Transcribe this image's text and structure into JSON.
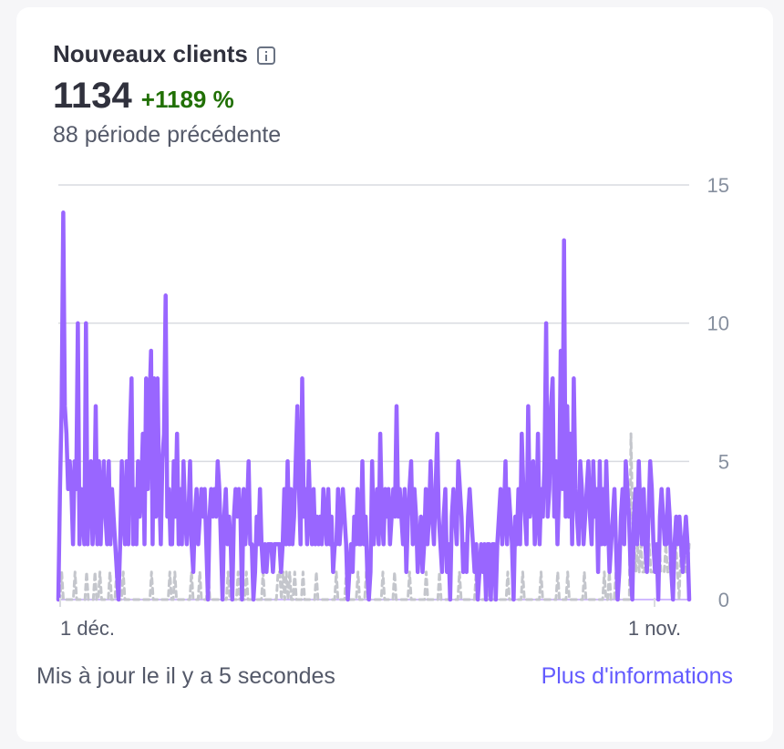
{
  "widget": {
    "title": "Nouveaux clients",
    "info_icon": "info-icon",
    "value": "1134",
    "delta": "+1189 %",
    "previous": "88 période précédente",
    "updated": "Mis à jour le il y a 5 secondes",
    "more_link": "Plus d'informations"
  },
  "colors": {
    "current": "#9966ff",
    "previous": "#c4c6cc",
    "grid": "#d9dbe0",
    "delta": "#217005",
    "link": "#635bff"
  },
  "chart_data": {
    "type": "line",
    "ylim": [
      0,
      15
    ],
    "y_ticks": [
      0,
      5,
      10,
      15
    ],
    "x_tick_labels": [
      "1 déc.",
      "1 nov."
    ],
    "grid": true,
    "series": [
      {
        "style": "solid",
        "values": [
          0,
          4,
          7,
          14,
          7,
          6,
          4,
          5,
          4,
          2,
          5,
          4,
          10,
          2,
          4,
          3,
          2,
          10,
          2,
          4,
          5,
          2,
          3,
          7,
          2,
          5,
          2,
          4,
          5,
          3,
          2,
          5,
          2,
          4,
          3,
          2,
          1,
          0,
          2,
          5,
          3,
          2,
          5,
          2,
          6,
          8,
          2,
          4,
          2,
          5,
          3,
          4,
          6,
          2,
          8,
          4,
          7,
          9,
          2,
          8,
          3,
          8,
          4,
          2,
          5,
          6,
          11,
          3,
          4,
          2,
          2,
          5,
          3,
          6,
          2,
          4,
          2,
          5,
          3,
          2,
          3,
          5,
          2,
          1,
          3,
          4,
          2,
          3,
          4,
          3,
          4,
          2,
          0,
          3,
          4,
          3,
          4,
          3,
          5,
          4,
          2,
          0,
          3,
          4,
          2,
          3,
          2,
          0,
          3,
          4,
          3,
          4,
          3,
          0,
          4,
          2,
          3,
          5,
          2,
          2,
          0,
          1,
          3,
          2,
          4,
          2,
          1,
          2,
          1,
          2,
          2,
          2,
          1,
          2,
          2,
          2,
          2,
          1,
          2,
          4,
          2,
          5,
          2,
          4,
          2,
          3,
          5,
          7,
          4,
          2,
          8,
          3,
          4,
          2,
          5,
          3,
          2,
          4,
          2,
          3,
          2,
          3,
          2,
          4,
          3,
          2,
          4,
          2,
          3,
          1,
          2,
          2,
          4,
          2,
          3,
          4,
          3,
          2,
          0,
          1,
          2,
          1,
          3,
          2,
          4,
          2,
          2,
          5,
          2,
          3,
          1,
          0,
          1,
          5,
          2,
          3,
          4,
          2,
          6,
          3,
          2,
          4,
          3,
          4,
          2,
          3,
          4,
          3,
          7,
          3,
          4,
          3,
          2,
          4,
          1,
          3,
          4,
          5,
          2,
          4,
          3,
          1,
          2,
          3,
          1,
          2,
          4,
          2,
          3,
          5,
          3,
          2,
          4,
          6,
          3,
          2,
          1,
          3,
          4,
          1,
          2,
          0,
          3,
          4,
          3,
          2,
          5,
          4,
          3,
          1,
          2,
          1,
          3,
          4,
          3,
          2,
          1,
          2,
          0,
          1,
          2,
          1,
          2,
          0,
          2,
          2,
          0,
          2,
          2,
          0,
          2,
          3,
          4,
          2,
          3,
          5,
          2,
          4,
          3,
          2,
          0,
          3,
          2,
          4,
          2,
          6,
          4,
          3,
          2,
          7,
          3,
          4,
          5,
          2,
          3,
          6,
          2,
          4,
          3,
          5,
          10,
          3,
          4,
          7,
          8,
          3,
          5,
          2,
          4,
          9,
          4,
          13,
          3,
          7,
          3,
          6,
          2,
          8,
          4,
          3,
          2,
          5,
          4,
          2,
          3,
          4,
          5,
          3,
          2,
          5,
          3,
          4,
          1,
          5,
          2,
          4,
          2,
          5,
          3,
          1,
          2,
          3,
          4,
          2,
          0,
          1,
          3,
          4,
          2,
          5,
          4,
          3,
          1,
          0,
          3,
          4,
          2,
          5,
          3,
          2,
          4,
          2,
          1,
          3,
          5,
          4,
          2,
          1,
          2,
          0,
          3,
          4,
          3,
          2,
          2,
          4,
          3,
          1,
          0,
          2,
          3,
          2,
          3,
          2,
          1,
          2,
          3,
          2,
          0
        ]
      },
      {
        "style": "dashed",
        "values": [
          0,
          0,
          1,
          0,
          0,
          0,
          0,
          0,
          0,
          0,
          1,
          0,
          0,
          0,
          0,
          0,
          0,
          1,
          0,
          0,
          0,
          0,
          1,
          0,
          0,
          1,
          0,
          0,
          0,
          0,
          0,
          1,
          0,
          0,
          0,
          1,
          0,
          0,
          0,
          1,
          0,
          0,
          0,
          0,
          0,
          0,
          0,
          0,
          0,
          0,
          0,
          0,
          0,
          0,
          0,
          0,
          1,
          0,
          0,
          0,
          0,
          0,
          0,
          0,
          0,
          0,
          0,
          1,
          0,
          0,
          1,
          0,
          0,
          0,
          0,
          0,
          0,
          0,
          0,
          0,
          1,
          0,
          0,
          0,
          0,
          1,
          0,
          0,
          0,
          0,
          1,
          0,
          0,
          0,
          0,
          0,
          0,
          0,
          0,
          0,
          0,
          0,
          1,
          0,
          0,
          0,
          0,
          0,
          1,
          0,
          0,
          0,
          0,
          1,
          0,
          0,
          0,
          0,
          0,
          0,
          0,
          0,
          0,
          1,
          0,
          0,
          0,
          0,
          0,
          0,
          0,
          0,
          1,
          1,
          0,
          1,
          0,
          1,
          0,
          1,
          0,
          0,
          1,
          0,
          0,
          0,
          0,
          1,
          0,
          0,
          0,
          0,
          0,
          0,
          0,
          1,
          0,
          0,
          0,
          0,
          0,
          0,
          0,
          0,
          0,
          0,
          0,
          1,
          0,
          0,
          0,
          0,
          0,
          1,
          0,
          0,
          0,
          0,
          0,
          0,
          1,
          0,
          0,
          0,
          0,
          1,
          0,
          0,
          0,
          0,
          0,
          0,
          0,
          0,
          0,
          1,
          0,
          0,
          0,
          0,
          0,
          0,
          1,
          0,
          0,
          0,
          0,
          0,
          0,
          0,
          0,
          1,
          0,
          0,
          0,
          0,
          0,
          0,
          0,
          0,
          0,
          1,
          0,
          0,
          0,
          0,
          0,
          0,
          0,
          1,
          0,
          0,
          0,
          0,
          0,
          0,
          0,
          0,
          0,
          0,
          0,
          1,
          0,
          0,
          0,
          0,
          0,
          0,
          0,
          0,
          0,
          1,
          0,
          0,
          0,
          0,
          0,
          0,
          0,
          1,
          0,
          0,
          0,
          0,
          0,
          0,
          0,
          0,
          0,
          0,
          1,
          0,
          0,
          0,
          0,
          0,
          0,
          0,
          0,
          1,
          0,
          0,
          0,
          0,
          0,
          0,
          0,
          0,
          0,
          0,
          1,
          0,
          0,
          0,
          0,
          0,
          0,
          0,
          0,
          0,
          1,
          0,
          0,
          0,
          0,
          0,
          1,
          0,
          0,
          0,
          0,
          0,
          0,
          0,
          0,
          0,
          1,
          0,
          0,
          0,
          0,
          0,
          0,
          0,
          0,
          0,
          0,
          0,
          1,
          0,
          0,
          1,
          0,
          0,
          0,
          1,
          0,
          0,
          0,
          0,
          0,
          0,
          0,
          0,
          6,
          3,
          2,
          1,
          2,
          1,
          2,
          1,
          1,
          2,
          1,
          2,
          1,
          1,
          1,
          2,
          1,
          2,
          1,
          1,
          1,
          2,
          1,
          1,
          2,
          1,
          1,
          2,
          1,
          0,
          2,
          1,
          2,
          1,
          1,
          2
        ]
      }
    ]
  }
}
